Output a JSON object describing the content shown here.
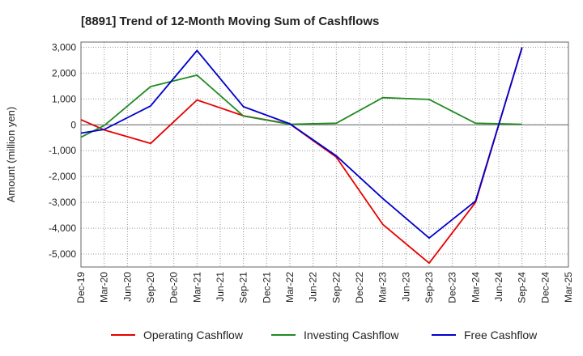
{
  "chart_data": {
    "type": "line",
    "title": "[8891]  Trend of 12-Month Moving Sum of Cashflows",
    "xlabel": "",
    "ylabel": "Amount (million yen)",
    "ylim": [
      -5500,
      3200
    ],
    "yticks": [
      3000,
      2000,
      1000,
      0,
      -1000,
      -2000,
      -3000,
      -4000,
      -5000
    ],
    "ytick_labels": [
      "3,000",
      "2,000",
      "1,000",
      "0",
      "-1,000",
      "-2,000",
      "-3,000",
      "-4,000",
      "-5,000"
    ],
    "categories": [
      "Dec-19",
      "Mar-20",
      "Jun-20",
      "Sep-20",
      "Dec-20",
      "Mar-21",
      "Jun-21",
      "Sep-21",
      "Dec-21",
      "Mar-22",
      "Jun-22",
      "Sep-22",
      "Dec-22",
      "Mar-23",
      "Jun-23",
      "Sep-23",
      "Dec-23",
      "Mar-24",
      "Jun-24",
      "Sep-24",
      "Dec-24",
      "Mar-25"
    ],
    "grid": true,
    "legend_position": "bottom",
    "series": [
      {
        "name": "Operating Cashflow",
        "color": "#e60000",
        "points": [
          [
            0,
            200
          ],
          [
            1,
            -200
          ],
          [
            3,
            -720
          ],
          [
            5,
            960
          ],
          [
            7,
            350
          ],
          [
            9,
            30
          ],
          [
            11,
            -1250
          ],
          [
            13,
            -3850
          ],
          [
            15,
            -5350
          ],
          [
            17,
            -3000
          ],
          [
            19,
            3000
          ]
        ]
      },
      {
        "name": "Investing Cashflow",
        "color": "#228b22",
        "points": [
          [
            0,
            -480
          ],
          [
            1,
            -30
          ],
          [
            3,
            1480
          ],
          [
            5,
            1920
          ],
          [
            7,
            340
          ],
          [
            9,
            20
          ],
          [
            11,
            60
          ],
          [
            13,
            1050
          ],
          [
            15,
            980
          ],
          [
            17,
            60
          ],
          [
            19,
            20
          ]
        ]
      },
      {
        "name": "Free Cashflow",
        "color": "#0000cc",
        "points": [
          [
            0,
            -320
          ],
          [
            1,
            -180
          ],
          [
            3,
            730
          ],
          [
            5,
            2870
          ],
          [
            7,
            700
          ],
          [
            9,
            40
          ],
          [
            11,
            -1200
          ],
          [
            13,
            -2850
          ],
          [
            15,
            -4380
          ],
          [
            17,
            -2950
          ],
          [
            19,
            2980
          ]
        ]
      }
    ]
  }
}
